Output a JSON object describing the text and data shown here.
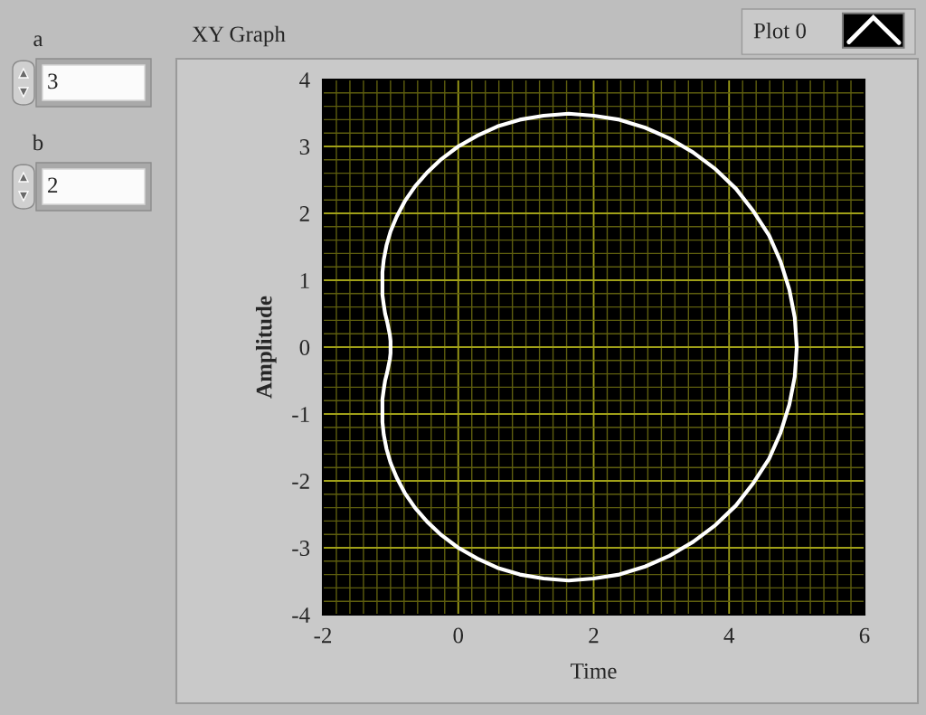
{
  "chart_data": {
    "type": "line",
    "title": "XY Graph",
    "xlabel": "Time",
    "ylabel": "Amplitude",
    "annotations": [
      "a",
      "3",
      "b",
      "2"
    ],
    "series": [
      {
        "name": "Plot 0",
        "color": "#ffffff",
        "x": [
          5,
          4.97,
          4.89,
          4.76,
          4.59,
          4.36,
          4.1,
          3.8,
          3.47,
          3.12,
          2.76,
          2.38,
          2,
          1.63,
          1.26,
          0.91,
          0.58,
          0.28,
          0,
          -0.25,
          -0.46,
          -0.64,
          -0.79,
          -0.91,
          -1,
          -1.06,
          -1.1,
          -1.12,
          -1.12,
          -1.12,
          -1.1,
          -1.08,
          -1.05,
          -1.03,
          -1.01,
          -1.0,
          -1
        ],
        "values": [
          0,
          0.44,
          0.86,
          1.28,
          1.67,
          2.03,
          2.37,
          2.66,
          2.91,
          3.12,
          3.28,
          3.4,
          3.46,
          3.49,
          3.46,
          3.4,
          3.3,
          3.16,
          3,
          2.81,
          2.61,
          2.4,
          2.18,
          1.95,
          1.73,
          1.52,
          1.31,
          1.12,
          0.94,
          0.78,
          0.63,
          0.5,
          0.38,
          0.28,
          0.18,
          0.09,
          0
        ]
      },
      {
        "color": "#ffffff",
        "x": [
          -1,
          -1.0,
          -1.01,
          -1.03,
          -1.05,
          -1.08,
          -1.1,
          -1.12,
          -1.12,
          -1.12,
          -1.1,
          -1.06,
          -1,
          -0.91,
          -0.79,
          -0.64,
          -0.46,
          -0.25,
          0,
          0.28,
          0.58,
          0.91,
          1.26,
          1.63,
          2,
          2.38,
          2.76,
          3.12,
          3.47,
          3.8,
          4.1,
          4.36,
          4.59,
          4.76,
          4.89,
          4.97,
          5
        ],
        "values": [
          0,
          -0.09,
          -0.18,
          -0.28,
          -0.38,
          -0.5,
          -0.63,
          -0.78,
          -0.94,
          -1.12,
          -1.31,
          -1.52,
          -1.73,
          -1.95,
          -2.18,
          -2.4,
          -2.61,
          -2.81,
          -3,
          -3.16,
          -3.3,
          -3.4,
          -3.46,
          -3.49,
          -3.46,
          -3.4,
          -3.28,
          -3.12,
          -2.91,
          -2.66,
          -2.37,
          -2.03,
          -1.67,
          -1.28,
          -0.86,
          -0.44,
          0
        ]
      }
    ],
    "xlim": [
      -2,
      6
    ],
    "ylim": [
      -4,
      4
    ],
    "xticks": [
      -2,
      {
        "value": -1.8,
        "label": null
      },
      {
        "value": -1.6,
        "label": null
      },
      {
        "value": -1.4,
        "label": null
      },
      {
        "value": -1.2,
        "label": null
      },
      {
        "value": -1,
        "label": null
      },
      {
        "value": -0.8,
        "label": null
      },
      {
        "value": -0.6,
        "label": null
      },
      {
        "value": -0.4,
        "label": null
      },
      {
        "value": -0.2,
        "label": null
      },
      0,
      {
        "value": 0.2,
        "label": null
      },
      {
        "value": 0.4,
        "label": null
      },
      {
        "value": 0.6,
        "label": null
      },
      {
        "value": 0.8,
        "label": null
      },
      {
        "value": 1,
        "label": null
      },
      {
        "value": 1.2,
        "label": null
      },
      {
        "value": 1.4,
        "label": null
      },
      {
        "value": 1.6,
        "label": null
      },
      {
        "value": 1.8,
        "label": null
      },
      2,
      {
        "value": 2.2,
        "label": null
      },
      {
        "value": 2.4,
        "label": null
      },
      {
        "value": 2.6,
        "label": null
      },
      {
        "value": 2.8,
        "label": null
      },
      {
        "value": 3,
        "label": null
      },
      {
        "value": 3.2,
        "label": null
      },
      {
        "value": 3.4,
        "label": null
      },
      {
        "value": 3.6,
        "label": null
      },
      {
        "value": 3.8,
        "label": null
      },
      4,
      {
        "value": 4.2,
        "label": null
      },
      {
        "value": 4.4,
        "label": null
      },
      {
        "value": 4.6,
        "label": null
      },
      {
        "value": 4.8,
        "label": null
      },
      {
        "value": 5,
        "label": null
      },
      {
        "value": 5.2,
        "label": null
      },
      {
        "value": 5.4,
        "label": null
      },
      {
        "value": 5.6,
        "label": null
      },
      {
        "value": 5.8,
        "label": null
      },
      6
    ],
    "yticks": [
      -4,
      {
        "value": -3.8,
        "label": null
      },
      {
        "value": -3.6,
        "label": null
      },
      {
        "value": -3.4,
        "label": null
      },
      {
        "value": -3.2,
        "label": null
      },
      -3,
      {
        "value": -2.8,
        "label": null
      },
      {
        "value": -2.6,
        "label": null
      },
      {
        "value": -2.4,
        "label": null
      },
      {
        "value": -2.2,
        "label": null
      },
      -2,
      {
        "value": -1.8,
        "label": null
      },
      {
        "value": -1.6,
        "label": null
      },
      {
        "value": -1.4,
        "label": null
      },
      {
        "value": -1.2,
        "label": null
      },
      -1,
      {
        "value": -0.8,
        "label": null
      },
      {
        "value": -0.6,
        "label": null
      },
      {
        "value": -0.4,
        "label": null
      },
      {
        "value": -0.2,
        "label": null
      },
      0,
      {
        "value": 0.2,
        "label": null
      },
      {
        "value": 0.4,
        "label": null
      },
      {
        "value": 0.6,
        "label": null
      },
      {
        "value": 0.8,
        "label": null
      },
      1,
      {
        "value": 1.2,
        "label": null
      },
      {
        "value": 1.4,
        "label": null
      },
      {
        "value": 1.6,
        "label": null
      },
      {
        "value": 1.8,
        "label": null
      },
      2,
      {
        "value": 2.2,
        "label": null
      },
      {
        "value": 2.4,
        "label": null
      },
      {
        "value": 2.6,
        "label": null
      },
      {
        "value": 2.8,
        "label": null
      },
      3,
      {
        "value": 3.2,
        "label": null
      },
      {
        "value": 3.4,
        "label": null
      },
      {
        "value": 3.6,
        "label": null
      },
      {
        "value": 3.8,
        "label": null
      },
      4
    ],
    "grid": true,
    "legend": "top right",
    "line_style": "solid"
  }
}
